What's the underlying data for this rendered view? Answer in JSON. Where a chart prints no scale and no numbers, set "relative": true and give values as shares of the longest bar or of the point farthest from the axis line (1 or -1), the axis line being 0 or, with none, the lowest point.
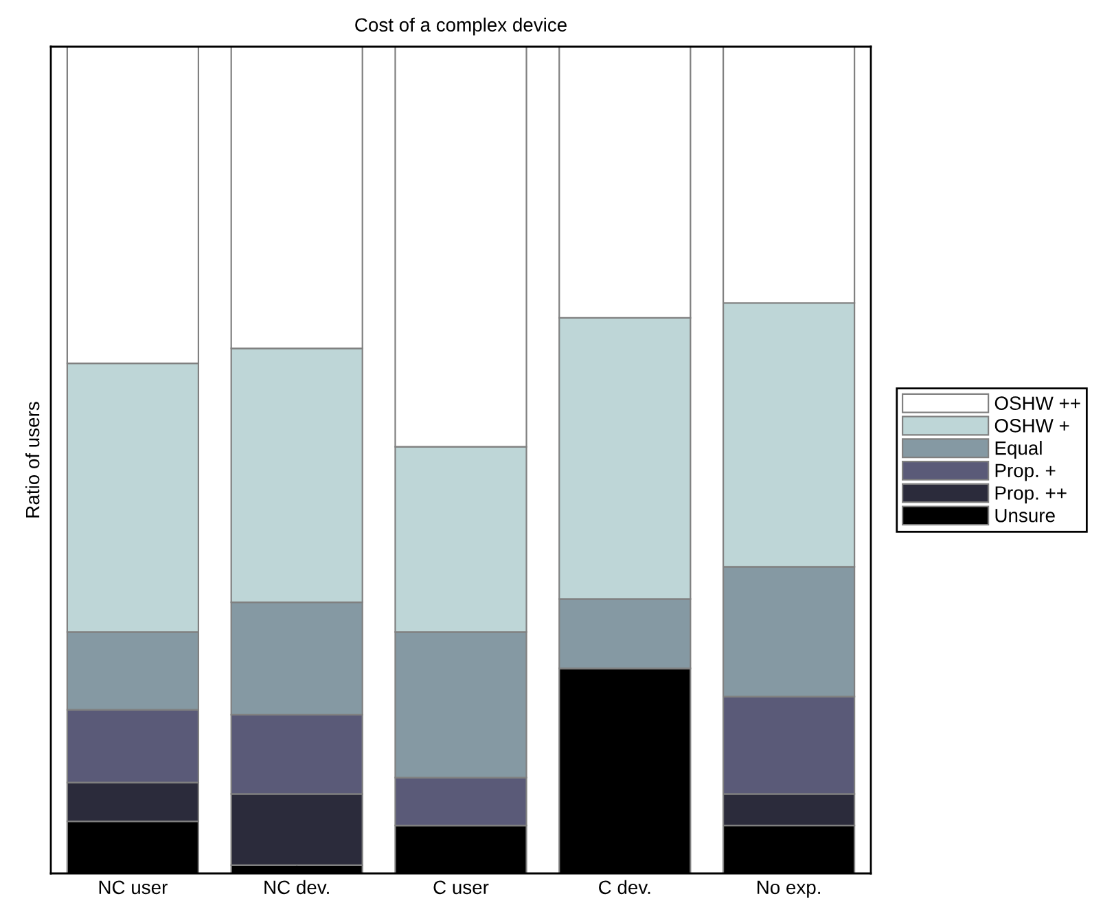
{
  "chart_data": {
    "type": "bar",
    "title": "Cost of a complex device",
    "ylabel": "Ratio of users",
    "categories": [
      "NC user",
      "NC dev.",
      "C user",
      "C dev.",
      "No exp."
    ],
    "stacked": true,
    "relative": true,
    "legend": "right",
    "grid": false,
    "series": [
      {
        "name": "Unsure",
        "color": "#000000",
        "values": [
          0.063,
          0.01,
          0.058,
          0.248,
          0.058
        ]
      },
      {
        "name": "Prop. ++",
        "color": "#2b2b3b",
        "values": [
          0.047,
          0.086,
          0,
          0,
          0.038
        ]
      },
      {
        "name": "Prop. +",
        "color": "#5a5a78",
        "values": [
          0.088,
          0.096,
          0.058,
          0,
          0.118
        ]
      },
      {
        "name": "Equal",
        "color": "#8599a3",
        "values": [
          0.094,
          0.136,
          0.176,
          0.084,
          0.157
        ]
      },
      {
        "name": "OSHW +",
        "color": "#bed6d7",
        "values": [
          0.325,
          0.307,
          0.224,
          0.34,
          0.319
        ]
      },
      {
        "name": "OSHW ++",
        "color": "#ffffff",
        "values": [
          0.383,
          0.365,
          0.484,
          0.328,
          0.31
        ]
      }
    ]
  }
}
